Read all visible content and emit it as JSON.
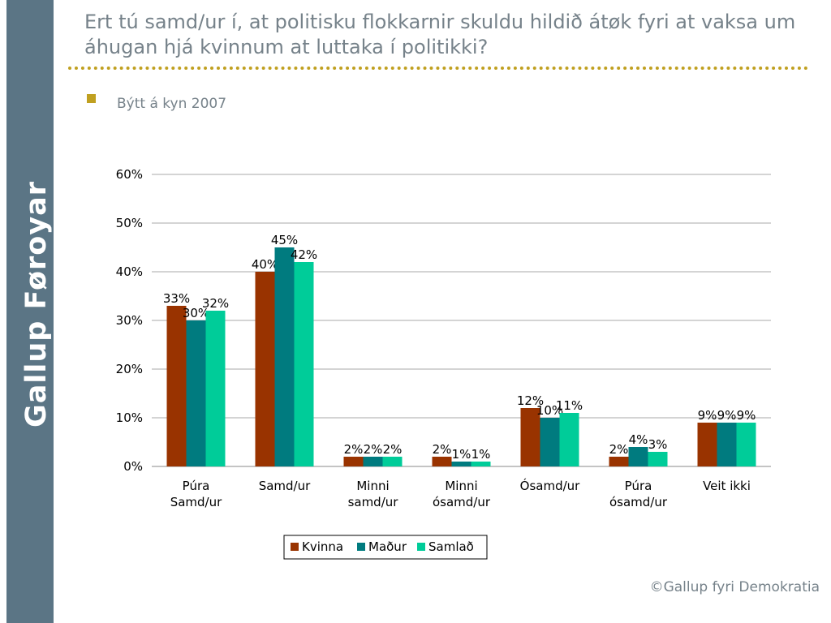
{
  "sidebar": {
    "brand": "Gallup Føroyar"
  },
  "header": {
    "title": "Ert tú samd/ur í, at politisku flokkarnir skuldu hildið átøk fyri at vaksa um áhugan hjá kvinnum at luttaka í politikki?",
    "subtitle": "Býtt á kyn 2007"
  },
  "footer": {
    "copyright": "©Gallup fyri Demokratia"
  },
  "colors": {
    "sidebar": "#5b7585",
    "accent": "#c0a020",
    "title": "#76828a"
  },
  "chart_data": {
    "type": "bar",
    "title": "",
    "xlabel": "",
    "ylabel": "",
    "ylim": [
      0,
      60
    ],
    "y_ticks": [
      "0%",
      "10%",
      "20%",
      "30%",
      "40%",
      "50%",
      "60%"
    ],
    "grid": true,
    "legend_position": "bottom-center",
    "categories": [
      [
        "Púra",
        "Samd/ur"
      ],
      [
        "Samd/ur"
      ],
      [
        "Minni",
        "samd/ur"
      ],
      [
        "Minni",
        "ósamd/ur"
      ],
      [
        "Ósamd/ur"
      ],
      [
        "Púra",
        "ósamd/ur"
      ],
      [
        "Veit ikki"
      ]
    ],
    "series": [
      {
        "name": "Kvinna",
        "color": "#993300",
        "values": [
          33,
          40,
          2,
          2,
          12,
          2,
          9
        ],
        "labels": [
          "33%",
          "40%",
          "2%",
          "2%",
          "12%",
          "2%",
          "9%"
        ]
      },
      {
        "name": "Maður",
        "color": "#007b7f",
        "values": [
          30,
          45,
          2,
          1,
          10,
          4,
          9
        ],
        "labels": [
          "30%",
          "45%",
          "2%",
          "1%",
          "10%",
          "4%",
          "9%"
        ]
      },
      {
        "name": "Samlað",
        "color": "#00cc99",
        "values": [
          32,
          42,
          2,
          1,
          11,
          3,
          9
        ],
        "labels": [
          "32%",
          "42%",
          "2%",
          "1%",
          "11%",
          "3%",
          "9%"
        ]
      }
    ]
  }
}
